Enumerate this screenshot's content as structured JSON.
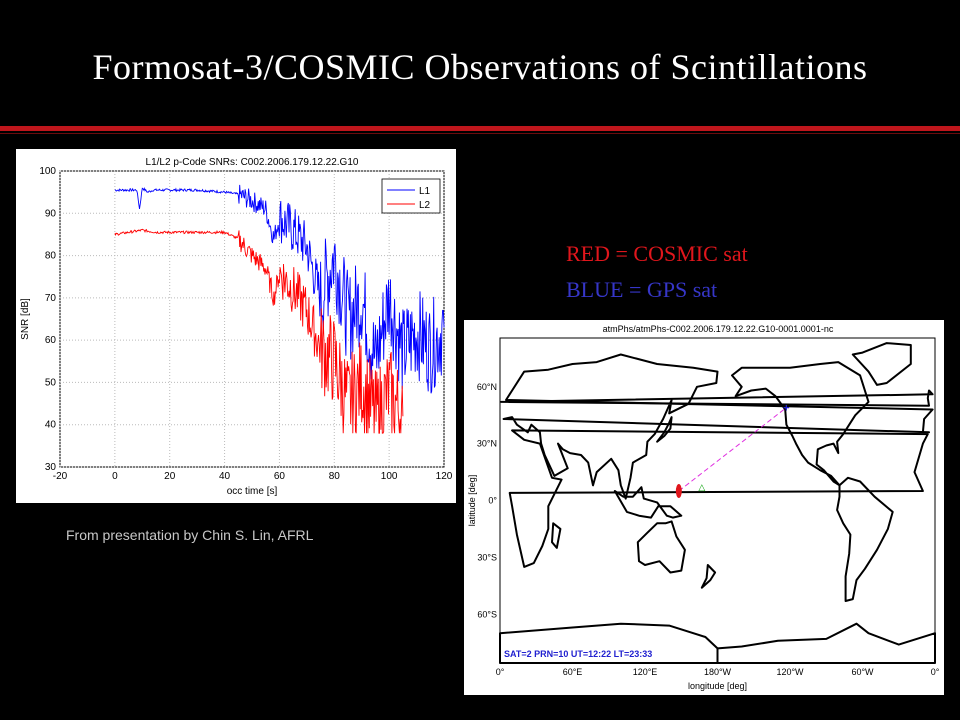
{
  "slide": {
    "title": "Formosat-3/COSMIC Observations of Scintillations",
    "credit": "From presentation by Chin S. Lin, AFRL",
    "legend_red": "RED = COSMIC sat",
    "legend_blue": "BLUE = GPS sat",
    "colors": {
      "background": "#000000",
      "rule": "#c0161c",
      "cosmic": "#e0161c",
      "gps": "#3636c8"
    }
  },
  "chart_data": [
    {
      "type": "line",
      "title": "L1/L2 p-Code SNRs: C002.2006.179.12.22.G10",
      "xlabel": "occ time [s]",
      "ylabel": "SNR [dB]",
      "xlim": [
        -20,
        120
      ],
      "ylim": [
        30,
        100
      ],
      "xticks": [
        -20,
        0,
        20,
        40,
        60,
        80,
        100,
        120
      ],
      "yticks": [
        30,
        40,
        50,
        60,
        70,
        80,
        90,
        100
      ],
      "grid": true,
      "legend_position": "top-right",
      "series": [
        {
          "name": "L1",
          "color": "#0000ff",
          "x": [
            0,
            8,
            9,
            10,
            12,
            14,
            20,
            30,
            40,
            45,
            50,
            55,
            58,
            60,
            65,
            70,
            75,
            80,
            85,
            90,
            95,
            100,
            105,
            110,
            115,
            120
          ],
          "y": [
            95.5,
            95.5,
            91,
            96,
            95,
            95.5,
            95.5,
            95.5,
            95,
            94.5,
            93,
            91,
            84,
            89,
            86,
            82,
            70,
            80,
            65,
            70,
            55,
            70,
            57,
            62,
            58,
            63
          ]
        },
        {
          "name": "L2",
          "color": "#ff0000",
          "x": [
            0,
            5,
            10,
            15,
            20,
            30,
            40,
            45,
            50,
            55,
            58,
            60,
            65,
            70,
            75,
            80,
            85,
            90,
            95,
            100,
            105
          ],
          "y": [
            85,
            85.5,
            86,
            85.5,
            85.5,
            85.5,
            85.5,
            84,
            80,
            77,
            70,
            76,
            72,
            67,
            58,
            55,
            45,
            50,
            42,
            48,
            42
          ]
        }
      ]
    },
    {
      "type": "scatter",
      "title": "atmPhs/atmPhs-C002.2006.179.12.22.G10-0001.0001-nc",
      "xlabel": "longitude [deg]",
      "ylabel": "latitude [deg]",
      "xticks": [
        "0°",
        "60°E",
        "120°E",
        "180°W",
        "120°W",
        "60°W",
        "0°"
      ],
      "yticks": [
        "60°N",
        "30°N",
        "0°",
        "30°S",
        "60°S"
      ],
      "annotation": "SAT=2 PRN=10  UT=12:22  LT=23:33",
      "grid": false,
      "points": [
        {
          "name": "COSMIC",
          "lon": 148,
          "lat": 5,
          "color": "#e0161c"
        },
        {
          "name": "GPS",
          "lon": -123,
          "lat": 49,
          "color": "#2020d0"
        },
        {
          "name": "tangent",
          "lon": 167,
          "lat": 7,
          "color": "#00a000"
        }
      ]
    }
  ]
}
